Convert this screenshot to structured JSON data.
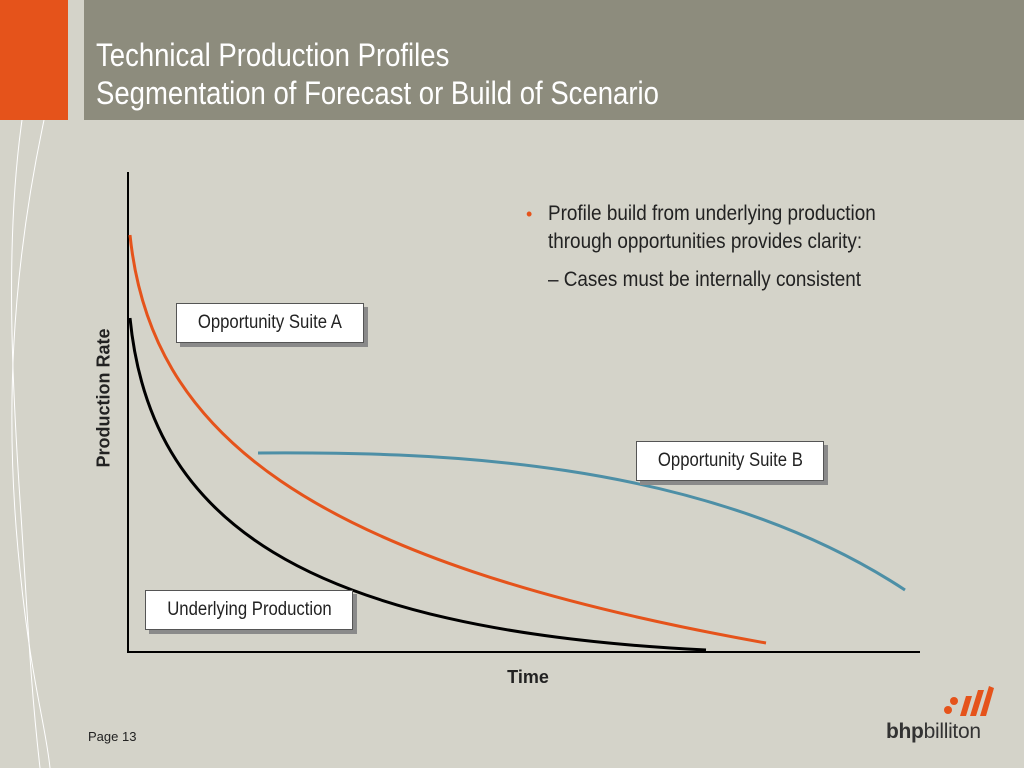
{
  "title": {
    "line1": "Technical Production Profiles",
    "line2": "Segmentation of Forecast or Build of Scenario"
  },
  "bullets": {
    "main": "Profile build from underlying production through opportunities provides clarity:",
    "sub": "– Cases must be internally consistent"
  },
  "diagram": {
    "y_axis_label": "Production Rate",
    "x_axis_label": "Time",
    "labels": {
      "suite_a": "Opportunity Suite A",
      "suite_b": "Opportunity Suite B",
      "underlying": "Underlying Production"
    }
  },
  "footer": {
    "page": "Page 13",
    "logo_bold": "bhp",
    "logo_rest": "billiton"
  },
  "colors": {
    "accent": "#e5531b",
    "title_bar": "#8d8c7d",
    "background": "#d4d3c9",
    "underlying_curve": "#000000",
    "suite_a_curve": "#e5531b",
    "suite_b_curve": "#4d8fa6"
  }
}
